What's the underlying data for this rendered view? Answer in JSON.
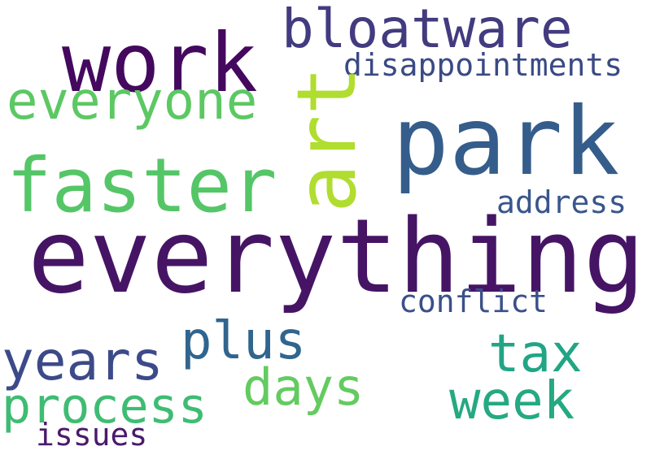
{
  "words": {
    "work": {
      "text": "work",
      "color": "#44085e"
    },
    "bloatware": {
      "text": "bloatware",
      "color": "#423b7f"
    },
    "disappointments": {
      "text": "disappointments",
      "color": "#3a4a84"
    },
    "everyone": {
      "text": "everyone",
      "color": "#5cc863"
    },
    "art": {
      "text": "art",
      "color": "#b0dd2f"
    },
    "park": {
      "text": "park",
      "color": "#355d8b"
    },
    "faster": {
      "text": "faster",
      "color": "#55c667"
    },
    "address": {
      "text": "address",
      "color": "#39568c"
    },
    "everything": {
      "text": "everything",
      "color": "#461465"
    },
    "conflict": {
      "text": "conflict",
      "color": "#3b4f8a"
    },
    "plus": {
      "text": "plus",
      "color": "#30658e"
    },
    "years": {
      "text": "years",
      "color": "#3d4a89"
    },
    "tax": {
      "text": "tax",
      "color": "#21a585"
    },
    "days": {
      "text": "days",
      "color": "#63cb5f"
    },
    "process": {
      "text": "process",
      "color": "#3fbc73"
    },
    "week": {
      "text": "week",
      "color": "#25a982"
    },
    "issues": {
      "text": "issues",
      "color": "#4a1a6b"
    }
  }
}
